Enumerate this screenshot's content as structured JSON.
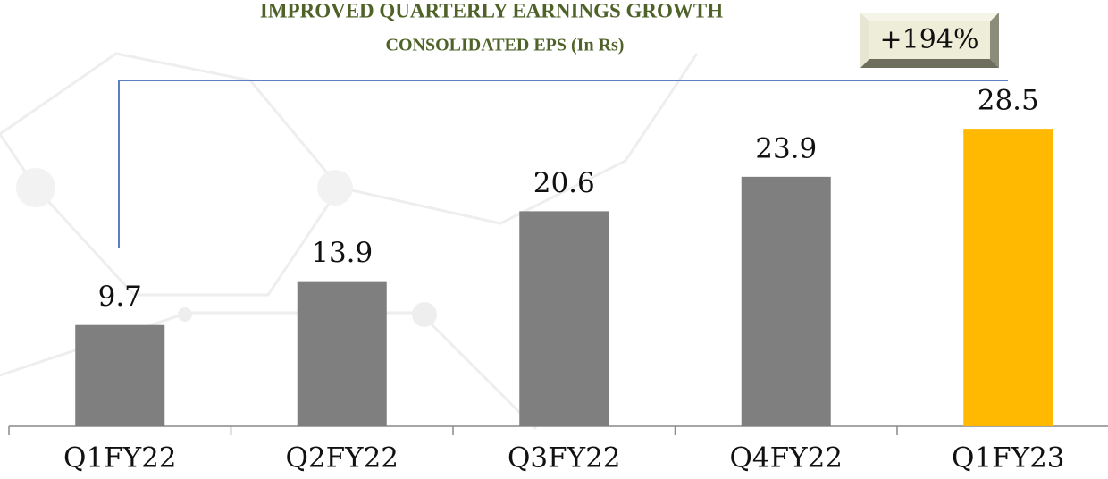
{
  "chart_data": {
    "type": "bar",
    "title": "IMPROVED QUARTERLY  EARNINGS GROWTH",
    "subtitle": "CONSOLIDATED EPS (In Rs)",
    "annotation": "+194%",
    "categories": [
      "Q1FY22",
      "Q2FY22",
      "Q3FY22",
      "Q4FY22",
      "Q1FY23"
    ],
    "values": [
      9.7,
      13.9,
      20.6,
      23.9,
      28.5
    ],
    "colors": [
      "#7f7f7f",
      "#7f7f7f",
      "#7f7f7f",
      "#7f7f7f",
      "#ffb900"
    ]
  }
}
